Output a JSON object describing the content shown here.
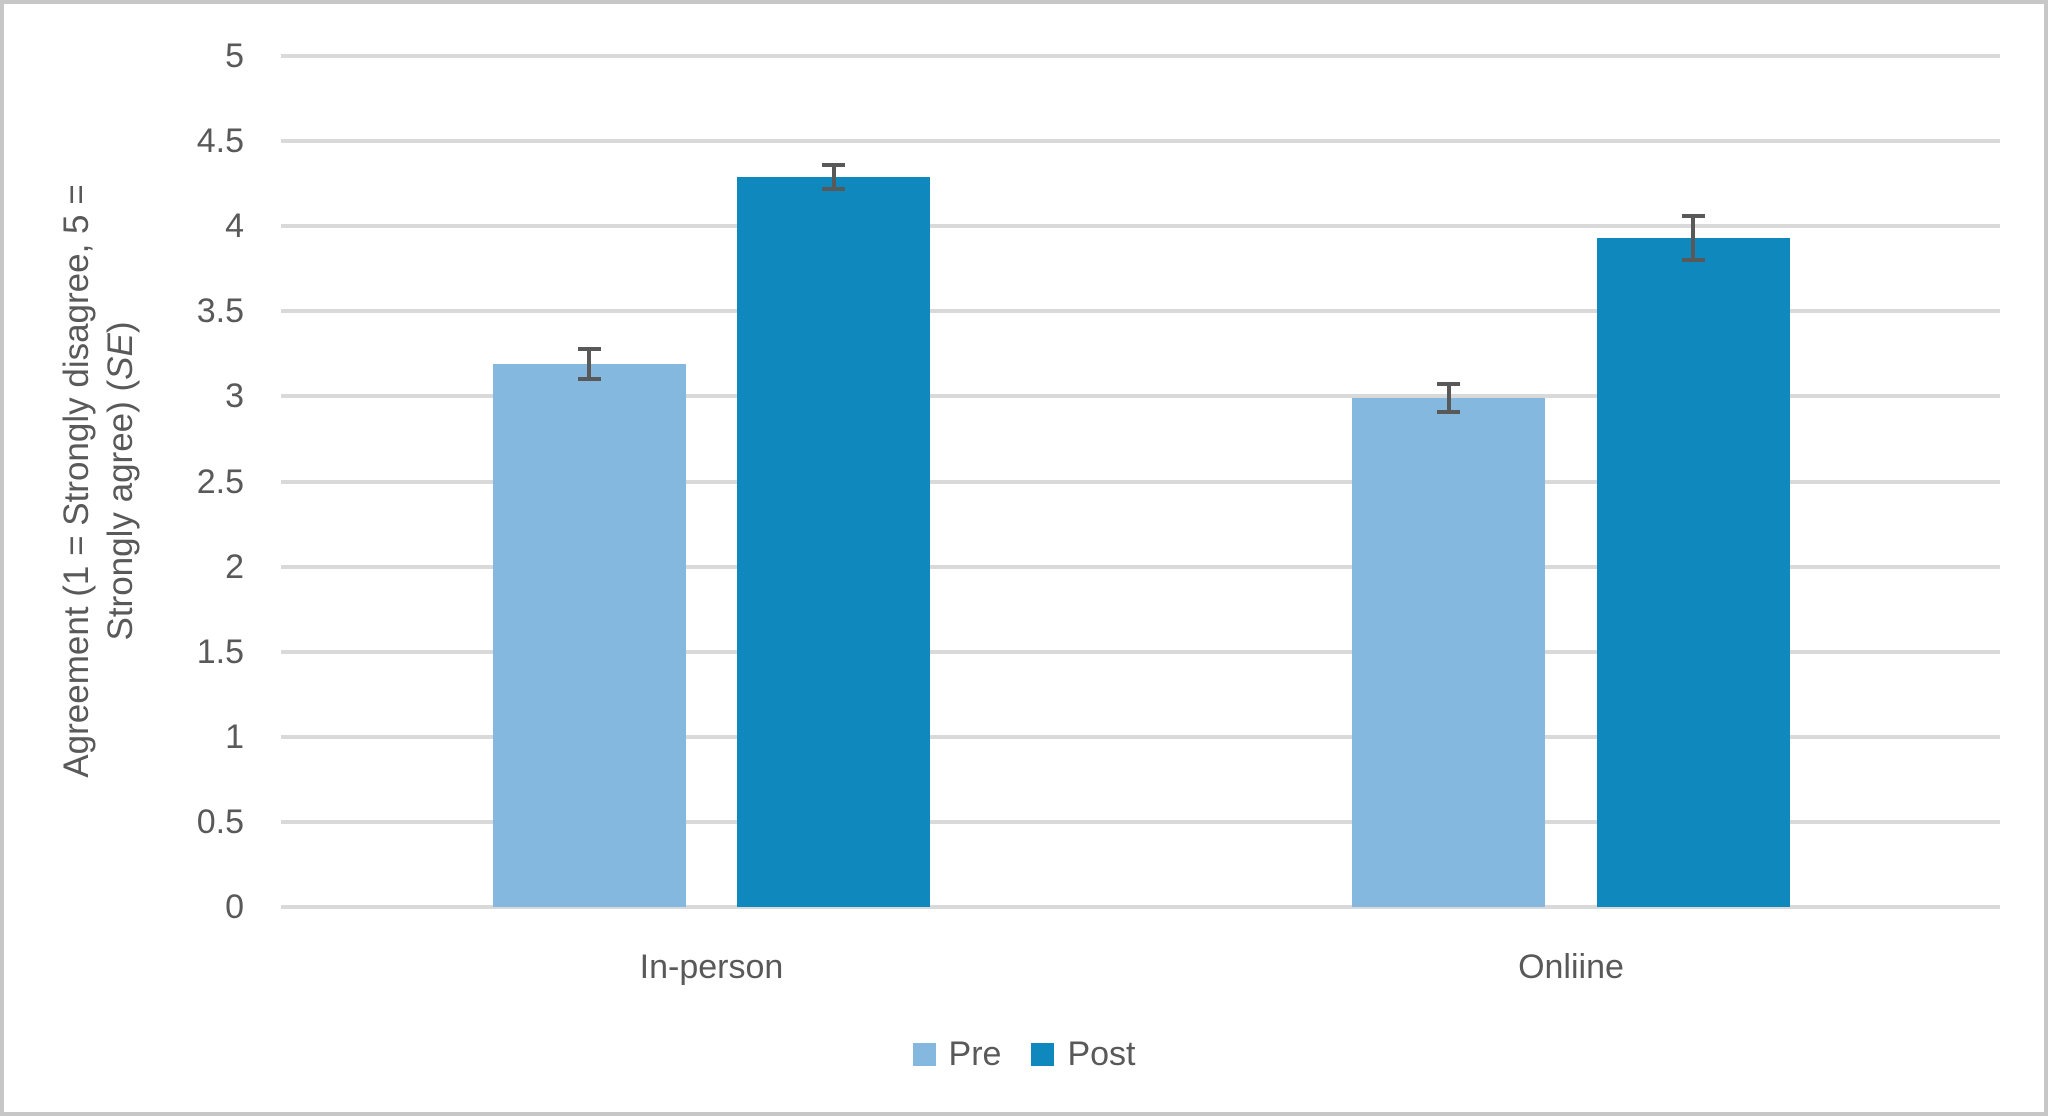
{
  "chart_data": {
    "type": "bar",
    "title": "",
    "categories": [
      "In-person",
      "Onliine"
    ],
    "series": [
      {
        "name": "Pre",
        "color": "#85B8DF",
        "values": [
          3.19,
          2.99
        ],
        "se": [
          0.09,
          0.08
        ]
      },
      {
        "name": "Post",
        "color": "#0F89BD",
        "values": [
          4.29,
          3.93
        ],
        "se": [
          0.07,
          0.13
        ]
      }
    ],
    "xlabel": "",
    "ylabel": "Agreement (1 = Strongly disagree, 5 = Strongly agree) (SE)",
    "ylabel_line1": "Agreement (1 = Strongly disagree, 5 =",
    "ylabel_line2_pre": "Strongly agree) (",
    "ylabel_line2_italic": "SE",
    "ylabel_line2_post": ")",
    "ylim": [
      0,
      5
    ],
    "ytick_step": 0.5,
    "ytick_labels": [
      "0",
      "0.5",
      "1",
      "1.5",
      "2",
      "2.5",
      "3",
      "3.5",
      "4",
      "4.5",
      "5"
    ],
    "grid": true,
    "error_bars": true,
    "legend_position": "bottom-center",
    "legend_labels": [
      "Pre",
      "Post"
    ],
    "colors": {
      "pre": "#85B8DF",
      "post": "#0F89BD",
      "text": "#595959",
      "gridline": "#D9D9D9",
      "error_bar": "#595959",
      "frame_border": "#C7C7C7",
      "background": "#FFFFFF"
    }
  }
}
